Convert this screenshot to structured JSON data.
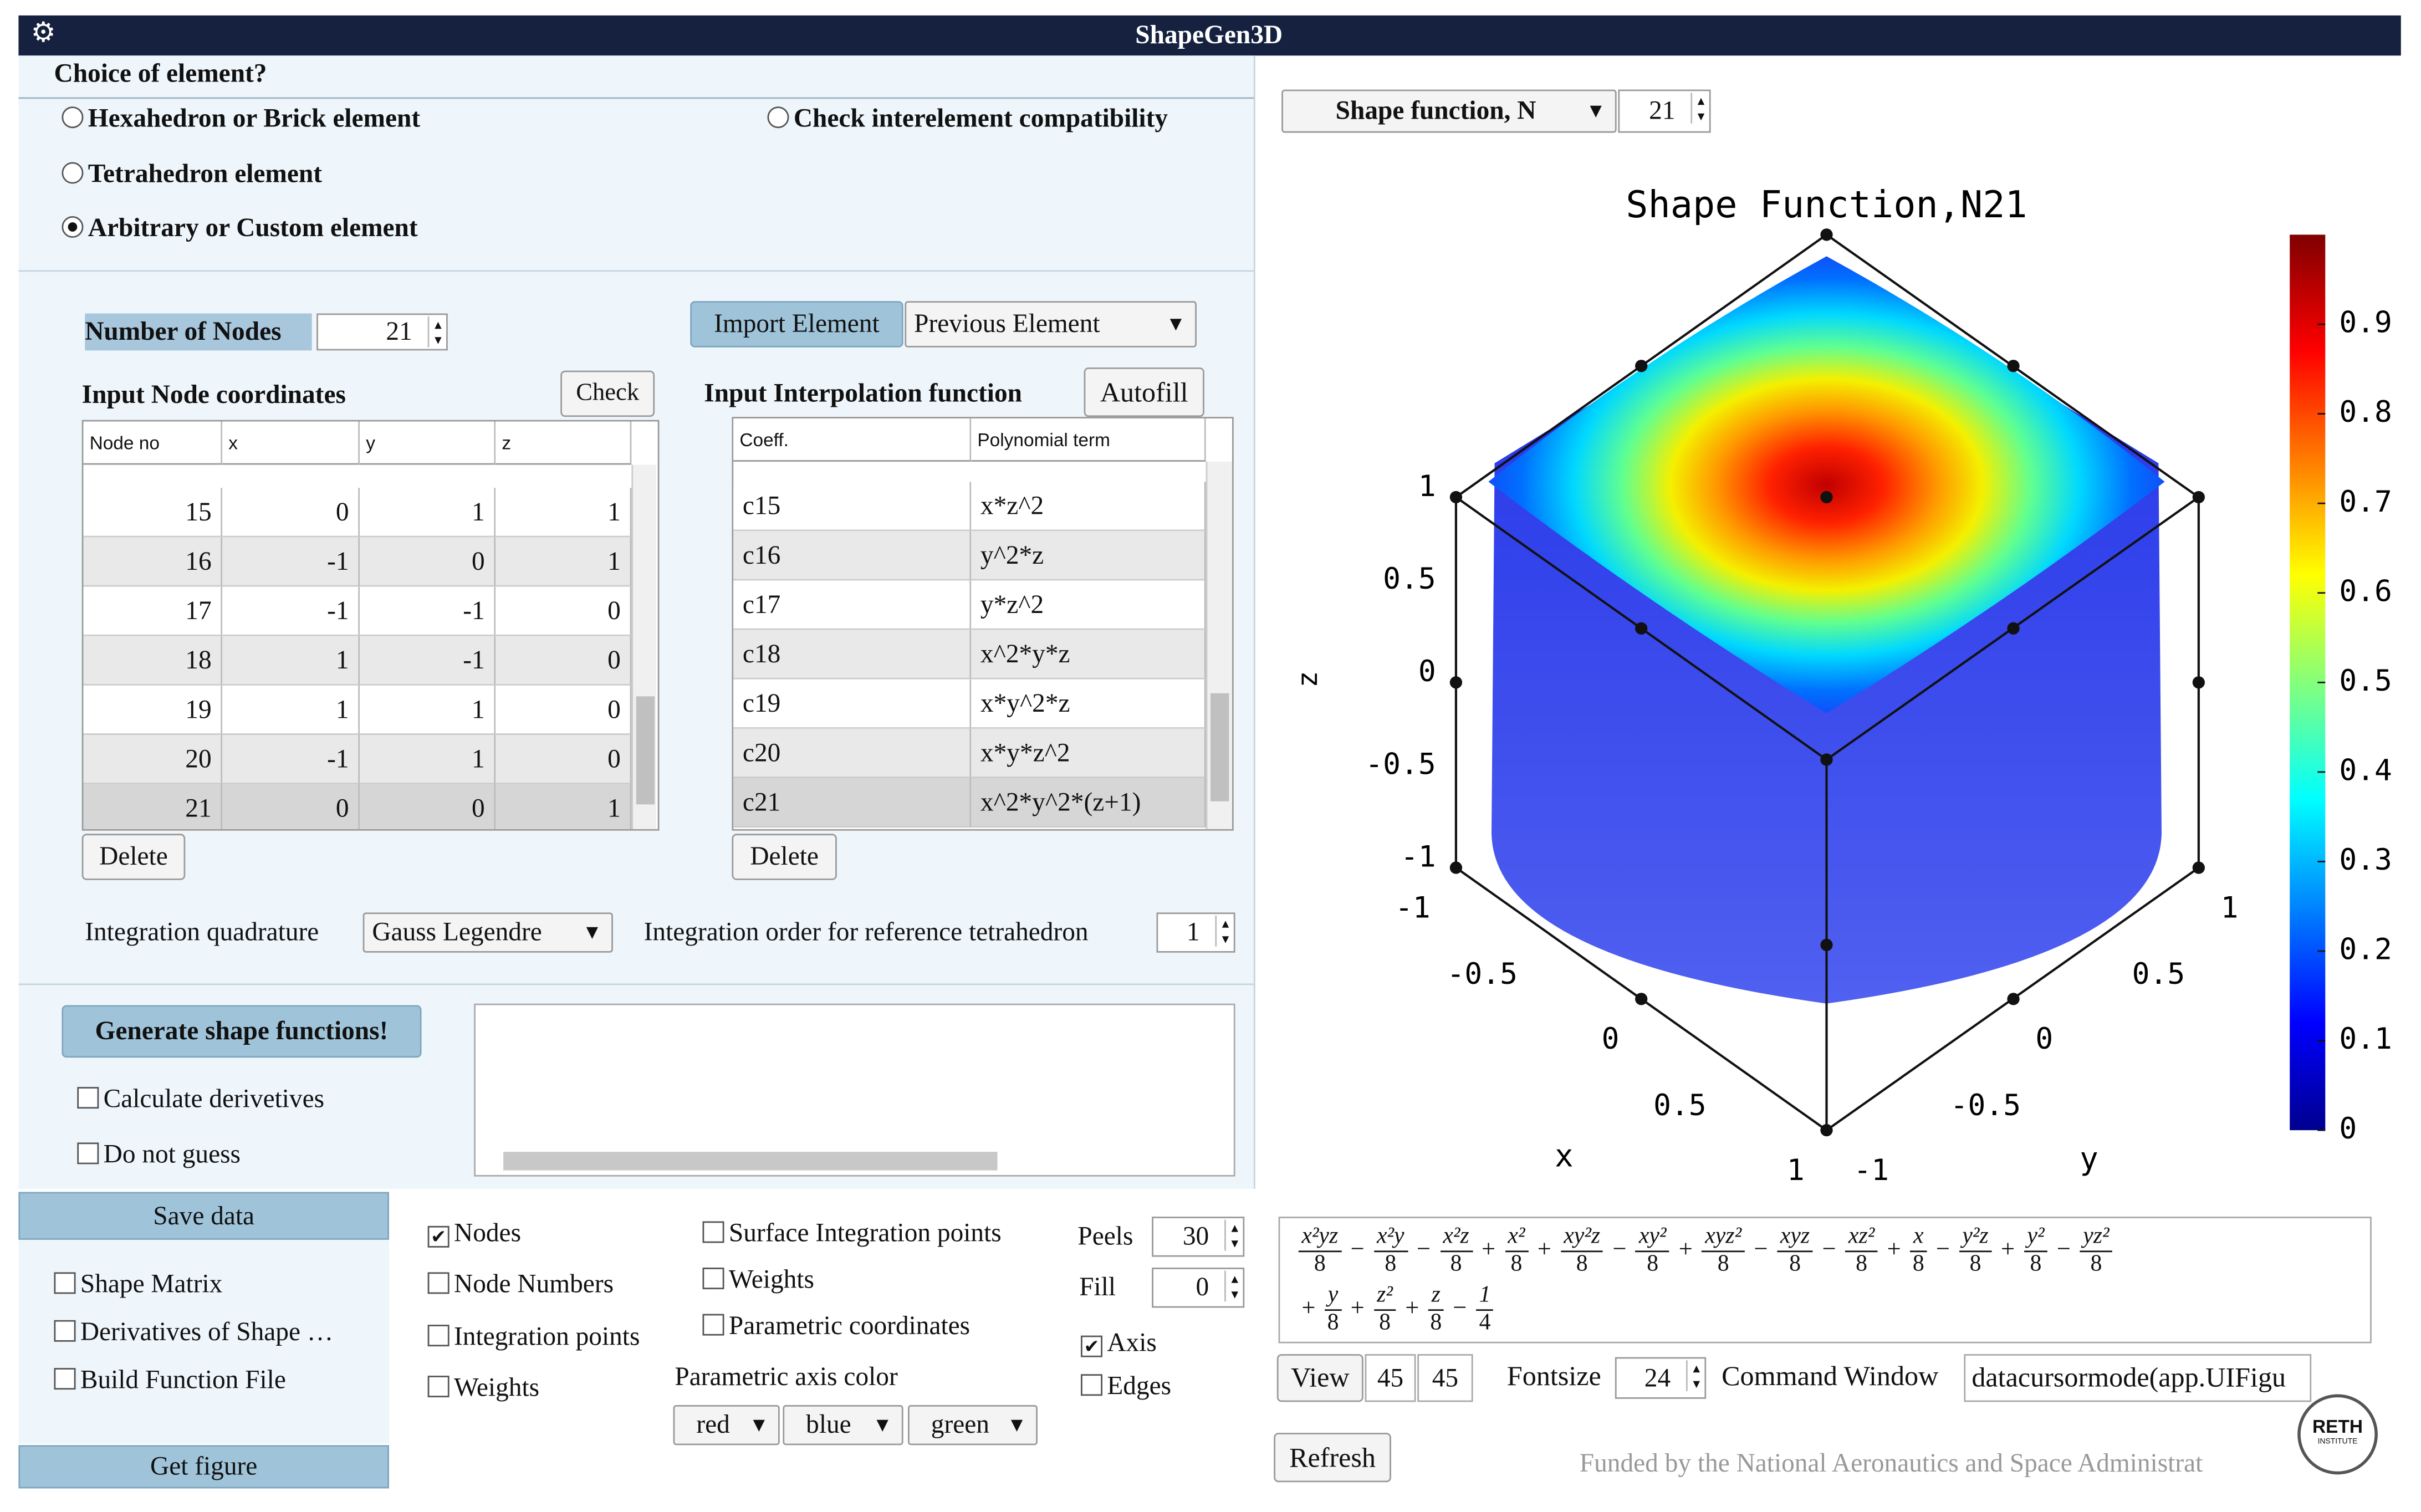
{
  "app_title": "ShapeGen3D",
  "element": {
    "prompt": "Choice of element?",
    "options": [
      "Hexahedron or Brick element",
      "Tetrahedron element",
      "Arbitrary or Custom element",
      "Check interelement compatibility"
    ],
    "selected": 2
  },
  "nodes": {
    "label": "Number of Nodes",
    "count": 21
  },
  "import_button": "Import Element",
  "previous_dropdown": "Previous Element",
  "node_table": {
    "title": "Input Node coordinates",
    "check_button": "Check",
    "columns": [
      "Node no",
      "x",
      "y",
      "z"
    ],
    "rows": [
      [
        15,
        0,
        1,
        1
      ],
      [
        16,
        -1,
        0,
        1
      ],
      [
        17,
        -1,
        -1,
        0
      ],
      [
        18,
        1,
        -1,
        0
      ],
      [
        19,
        1,
        1,
        0
      ],
      [
        20,
        -1,
        1,
        0
      ],
      [
        21,
        0,
        0,
        1
      ]
    ],
    "delete_button": "Delete"
  },
  "interp_table": {
    "title": "Input Interpolation function",
    "autofill_button": "Autofill",
    "columns": [
      "Coeff.",
      "Polynomial term"
    ],
    "rows": [
      [
        "c15",
        "x*z^2"
      ],
      [
        "c16",
        "y^2*z"
      ],
      [
        "c17",
        "y*z^2"
      ],
      [
        "c18",
        "x^2*y*z"
      ],
      [
        "c19",
        "x*y^2*z"
      ],
      [
        "c20",
        "x*y*z^2"
      ],
      [
        "c21",
        "x^2*y^2*(z+1)"
      ]
    ],
    "delete_button": "Delete"
  },
  "quadrature": {
    "label": "Integration quadrature",
    "method": "Gauss Legendre",
    "order_label": "Integration order for reference tetrahedron",
    "order": 1
  },
  "generate_button": "Generate shape functions!",
  "save_button": "Save data",
  "figure_button": "Get figure",
  "checkboxes": [
    {
      "label": "Calculate derivetives",
      "checked": false
    },
    {
      "label": "Do not guess",
      "checked": false
    },
    {
      "label": "Shape Matrix",
      "checked": false
    },
    {
      "label": "Derivatives of Shape …",
      "checked": false
    },
    {
      "label": "Build Function File",
      "checked": false
    },
    {
      "label": "Nodes",
      "checked": true
    },
    {
      "label": "Node Numbers",
      "checked": false
    },
    {
      "label": "Integration points",
      "checked": false
    },
    {
      "label": "Weights",
      "checked": false
    },
    {
      "label": "Surface Integration points",
      "checked": false
    },
    {
      "label": "Weights",
      "checked": false
    },
    {
      "label": "Parametric coordinates",
      "checked": false
    },
    {
      "label": "Axis",
      "checked": true
    },
    {
      "label": "Edges",
      "checked": false
    }
  ],
  "axis_color": {
    "label": "Parametric axis color",
    "values": [
      "red",
      "blue",
      "green"
    ]
  },
  "peels": {
    "label": "Peels",
    "value": 30
  },
  "fill": {
    "label": "Fill",
    "value": 0
  },
  "plot": {
    "selector": "Shape function, N",
    "index": 21,
    "title": "Shape Function,N21",
    "x_label": "x",
    "y_label": "y",
    "z_label": "z",
    "x_ticks": [
      -1,
      -0.5,
      0,
      0.5,
      1
    ],
    "y_ticks": [
      1,
      0.5,
      0,
      -0.5,
      -1
    ],
    "z_ticks": [
      1,
      0.5,
      0,
      -0.5,
      -1
    ],
    "colorbar": {
      "lim": [
        0,
        1
      ],
      "ticks": [
        0,
        0.1,
        0.2,
        0.3,
        0.4,
        0.5,
        0.6,
        0.7,
        0.8,
        0.9
      ]
    }
  },
  "equation": {
    "lines": [
      [
        {
          "num": "x²yz",
          "den": "8"
        },
        {
          "op": "−",
          "num": "x²y",
          "den": "8"
        },
        {
          "op": "−",
          "num": "x²z",
          "den": "8"
        },
        {
          "op": "+",
          "num": "x²",
          "den": "8"
        },
        {
          "op": "+",
          "num": "xy²z",
          "den": "8"
        },
        {
          "op": "−",
          "num": "xy²",
          "den": "8"
        },
        {
          "op": "+",
          "num": "xyz²",
          "den": "8"
        },
        {
          "op": "−",
          "num": "xyz",
          "den": "8"
        },
        {
          "op": "−",
          "num": "xz²",
          "den": "8"
        },
        {
          "op": "+",
          "num": "x",
          "den": "8"
        },
        {
          "op": "−",
          "num": "y²z",
          "den": "8"
        },
        {
          "op": "+",
          "num": "y²",
          "den": "8"
        },
        {
          "op": "−",
          "num": "yz²",
          "den": "8"
        }
      ],
      [
        {
          "op": "+",
          "num": "y",
          "den": "8"
        },
        {
          "op": "+",
          "num": "z²",
          "den": "8"
        },
        {
          "op": "+",
          "num": "z",
          "den": "8"
        },
        {
          "op": "−",
          "num": "1",
          "den": "4"
        }
      ]
    ]
  },
  "view": {
    "button": "View",
    "azimuth": 45,
    "elevation": 45
  },
  "fontsize": {
    "label": "Fontsize",
    "value": 24
  },
  "command": {
    "label": "Command Window",
    "value": "datacursormode(app.UIFigu"
  },
  "refresh_button": "Refresh",
  "footer": "Funded by the National Aeronautics and Space Administrat",
  "logo": {
    "name": "RETH",
    "sub": "INSTITUTE"
  }
}
